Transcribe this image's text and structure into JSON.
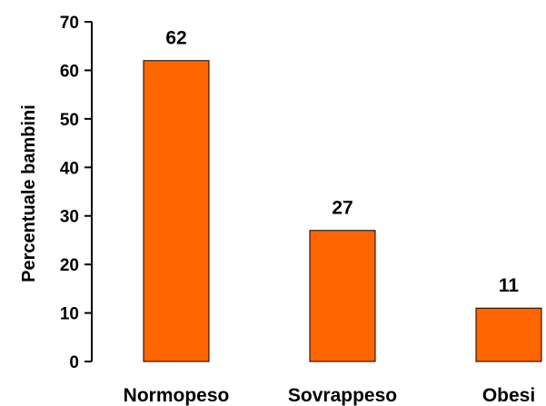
{
  "chart_data": {
    "type": "bar",
    "title": "",
    "xlabel": "",
    "ylabel": "Percentuale bambini",
    "categories": [
      "Normopeso",
      "Sovrappeso",
      "Obesi"
    ],
    "values": [
      62,
      27,
      11
    ],
    "value_labels": [
      "62",
      "27",
      "11"
    ],
    "ylim": [
      0,
      70
    ],
    "yticks": [
      0,
      10,
      20,
      30,
      40,
      50,
      60,
      70
    ],
    "ytick_labels": [
      "0",
      "10",
      "20",
      "30",
      "40",
      "50",
      "60",
      "70"
    ],
    "grid": false,
    "legend": "none",
    "bar_color": "#ff6600",
    "bar_edge_color": "#000000"
  }
}
